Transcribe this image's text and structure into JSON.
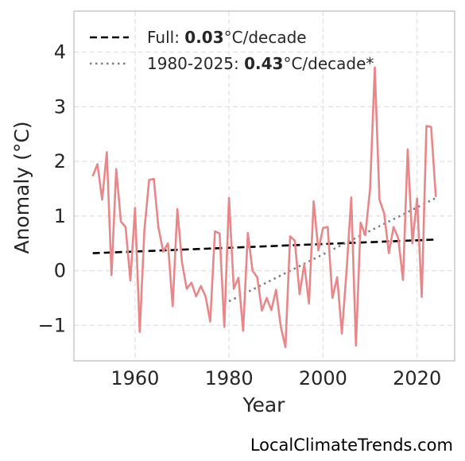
{
  "chart_data": {
    "type": "line",
    "xlabel": "Year",
    "ylabel": "Anomaly (°C)",
    "xlim": [
      1947,
      2028
    ],
    "ylim": [
      -1.65,
      4.75
    ],
    "x_ticks": [
      1960,
      1980,
      2000,
      2020
    ],
    "y_ticks": [
      4,
      3,
      2,
      1,
      0,
      -1
    ],
    "y_tick_labels": [
      "4",
      "3",
      "2",
      "1",
      "0",
      "−1"
    ],
    "grid": true,
    "legend_position": "top-left",
    "series": [
      {
        "color": "#e8878a",
        "x": [
          1951,
          1952,
          1953,
          1954,
          1955,
          1956,
          1957,
          1958,
          1959,
          1960,
          1961,
          1962,
          1963,
          1964,
          1965,
          1966,
          1967,
          1968,
          1969,
          1970,
          1971,
          1972,
          1973,
          1974,
          1975,
          1976,
          1977,
          1978,
          1979,
          1980,
          1981,
          1982,
          1983,
          1984,
          1985,
          1986,
          1987,
          1988,
          1989,
          1990,
          1991,
          1992,
          1993,
          1994,
          1995,
          1996,
          1997,
          1998,
          1999,
          2000,
          2001,
          2002,
          2003,
          2004,
          2005,
          2006,
          2007,
          2008,
          2009,
          2010,
          2011,
          2012,
          2013,
          2014,
          2015,
          2016,
          2017,
          2018,
          2019,
          2020,
          2021,
          2022,
          2023,
          2024
        ],
        "values": [
          1.73,
          1.95,
          1.3,
          2.17,
          -0.08,
          1.86,
          0.9,
          0.8,
          -0.18,
          1.15,
          -1.12,
          0.75,
          1.66,
          1.68,
          0.78,
          0.35,
          0.5,
          -0.65,
          1.13,
          0.15,
          -0.33,
          -0.22,
          -0.47,
          -0.28,
          -0.47,
          -0.93,
          0.72,
          0.68,
          -1.03,
          1.33,
          -0.33,
          -0.13,
          -1.1,
          0.69,
          0.0,
          -0.12,
          -0.73,
          -0.5,
          -0.72,
          -0.35,
          -1.02,
          -1.4,
          0.63,
          0.55,
          -0.43,
          0.12,
          -0.6,
          1.27,
          0.37,
          0.78,
          0.8,
          -0.5,
          -0.12,
          -1.15,
          0.0,
          1.34,
          -1.37,
          0.88,
          0.65,
          1.5,
          3.72,
          1.3,
          1.05,
          0.32,
          0.8,
          0.6,
          -0.17,
          2.22,
          0.5,
          1.32,
          -0.48,
          2.65,
          2.63,
          1.35
        ]
      }
    ],
    "trend_lines": [
      {
        "label_prefix": "Full: ",
        "label_value": "0.03",
        "label_suffix": "°C/decade",
        "style": "dashed",
        "color": "#000000",
        "x": [
          1951,
          2024
        ],
        "y": [
          0.32,
          0.57
        ]
      },
      {
        "label_prefix": "1980-2025: ",
        "label_value": "0.43",
        "label_suffix": "°C/decade*",
        "style": "dotted",
        "color": "#7f7f7f",
        "x": [
          1980,
          2024
        ],
        "y": [
          -0.56,
          1.33
        ]
      }
    ]
  },
  "credit": "LocalClimateTrends.com"
}
